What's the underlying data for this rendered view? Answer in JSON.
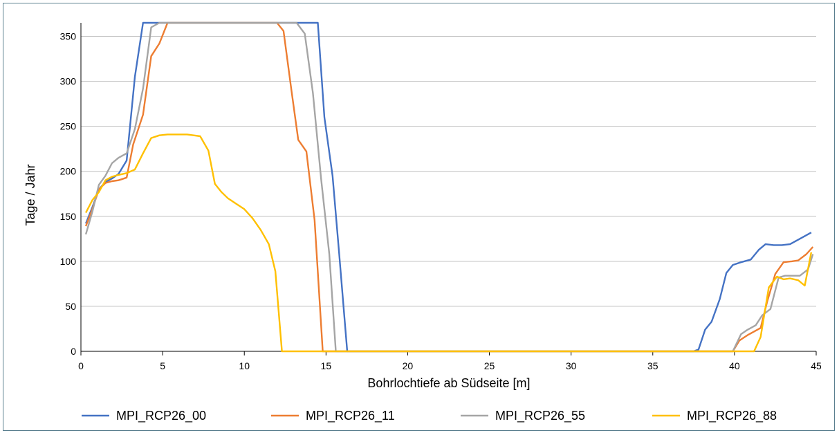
{
  "chart_data": {
    "type": "line",
    "title": "",
    "xlabel": "Bohrlochtiefe ab Südseite [m]",
    "ylabel": "Tage / Jahr",
    "xlim": [
      0,
      45
    ],
    "ylim": [
      0,
      365
    ],
    "xticks": [
      0,
      5,
      10,
      15,
      20,
      25,
      30,
      35,
      40,
      45
    ],
    "yticks": [
      0,
      50,
      100,
      150,
      200,
      250,
      300,
      350
    ],
    "grid": "horizontal",
    "legend": "bottom",
    "series": [
      {
        "name": "MPI_RCP26_00",
        "color": "#4472c4",
        "points": [
          [
            0.3,
            142
          ],
          [
            0.7,
            160
          ],
          [
            1.1,
            180
          ],
          [
            1.5,
            188
          ],
          [
            1.9,
            192
          ],
          [
            2.3,
            197
          ],
          [
            2.8,
            212
          ],
          [
            3.3,
            305
          ],
          [
            3.8,
            365
          ],
          [
            14.5,
            365
          ],
          [
            14.9,
            260
          ],
          [
            15.4,
            195
          ],
          [
            15.8,
            110
          ],
          [
            16.3,
            0
          ],
          [
            37.5,
            0
          ],
          [
            37.8,
            2
          ],
          [
            38.2,
            24
          ],
          [
            38.6,
            33
          ],
          [
            39.1,
            58
          ],
          [
            39.5,
            87
          ],
          [
            39.9,
            96
          ],
          [
            40.4,
            99
          ],
          [
            41.0,
            102
          ],
          [
            41.5,
            113
          ],
          [
            41.9,
            119
          ],
          [
            42.4,
            118
          ],
          [
            42.9,
            118
          ],
          [
            43.4,
            119
          ],
          [
            44.0,
            125
          ],
          [
            44.7,
            132
          ]
        ]
      },
      {
        "name": "MPI_RCP26_11",
        "color": "#ed7d31",
        "points": [
          [
            0.3,
            139
          ],
          [
            0.7,
            158
          ],
          [
            1.1,
            180
          ],
          [
            1.5,
            187
          ],
          [
            1.9,
            189
          ],
          [
            2.3,
            190
          ],
          [
            2.8,
            193
          ],
          [
            3.2,
            230
          ],
          [
            3.8,
            263
          ],
          [
            4.3,
            328
          ],
          [
            4.8,
            342
          ],
          [
            5.3,
            365
          ],
          [
            12.0,
            365
          ],
          [
            12.4,
            356
          ],
          [
            12.9,
            288
          ],
          [
            13.3,
            235
          ],
          [
            13.8,
            222
          ],
          [
            14.3,
            146
          ],
          [
            14.8,
            0
          ],
          [
            39.9,
            0
          ],
          [
            40.3,
            12
          ],
          [
            40.8,
            18
          ],
          [
            41.2,
            22
          ],
          [
            41.6,
            26
          ],
          [
            42.0,
            55
          ],
          [
            42.5,
            86
          ],
          [
            43.0,
            99
          ],
          [
            43.5,
            100
          ],
          [
            43.9,
            101
          ],
          [
            44.4,
            108
          ],
          [
            44.8,
            116
          ]
        ]
      },
      {
        "name": "MPI_RCP26_55",
        "color": "#a5a5a5",
        "points": [
          [
            0.3,
            130
          ],
          [
            0.7,
            155
          ],
          [
            1.1,
            185
          ],
          [
            1.5,
            195
          ],
          [
            1.9,
            209
          ],
          [
            2.3,
            215
          ],
          [
            2.8,
            220
          ],
          [
            3.3,
            247
          ],
          [
            3.8,
            292
          ],
          [
            4.3,
            360
          ],
          [
            4.8,
            365
          ],
          [
            13.2,
            365
          ],
          [
            13.7,
            353
          ],
          [
            14.2,
            287
          ],
          [
            14.7,
            192
          ],
          [
            15.2,
            108
          ],
          [
            15.6,
            0
          ],
          [
            39.9,
            0
          ],
          [
            40.4,
            19
          ],
          [
            40.8,
            24
          ],
          [
            41.3,
            29
          ],
          [
            41.7,
            40
          ],
          [
            42.2,
            47
          ],
          [
            42.7,
            82
          ],
          [
            43.1,
            84
          ],
          [
            43.6,
            84
          ],
          [
            44.0,
            84
          ],
          [
            44.5,
            91
          ],
          [
            44.8,
            108
          ]
        ]
      },
      {
        "name": "MPI_RCP26_88",
        "color": "#ffc000",
        "points": [
          [
            0.3,
            154
          ],
          [
            0.7,
            168
          ],
          [
            1.1,
            177
          ],
          [
            1.5,
            190
          ],
          [
            1.9,
            194
          ],
          [
            2.3,
            196
          ],
          [
            2.8,
            198
          ],
          [
            3.3,
            202
          ],
          [
            3.8,
            220
          ],
          [
            4.3,
            237
          ],
          [
            4.8,
            240
          ],
          [
            5.3,
            241
          ],
          [
            5.9,
            241
          ],
          [
            6.5,
            241
          ],
          [
            6.9,
            240
          ],
          [
            7.3,
            239
          ],
          [
            7.8,
            223
          ],
          [
            8.2,
            186
          ],
          [
            8.6,
            177
          ],
          [
            9.0,
            170
          ],
          [
            9.5,
            164
          ],
          [
            10.0,
            158
          ],
          [
            10.5,
            148
          ],
          [
            11.0,
            135
          ],
          [
            11.5,
            119
          ],
          [
            11.9,
            89
          ],
          [
            12.3,
            0
          ],
          [
            41.2,
            0
          ],
          [
            41.6,
            16
          ],
          [
            42.1,
            71
          ],
          [
            42.6,
            83
          ],
          [
            43.0,
            80
          ],
          [
            43.4,
            81
          ],
          [
            43.9,
            79
          ],
          [
            44.3,
            73
          ],
          [
            44.7,
            110
          ]
        ]
      }
    ]
  }
}
